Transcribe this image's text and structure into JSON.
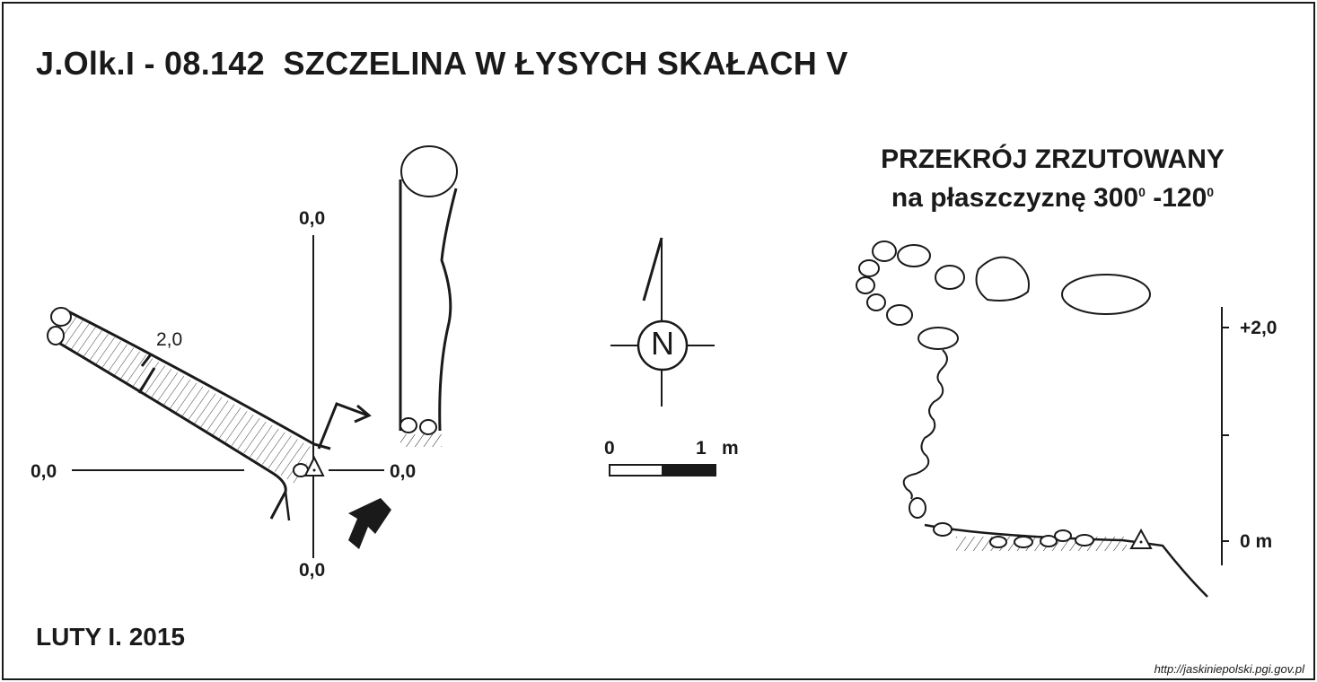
{
  "header": {
    "title": "J.Olk.I - 08.142  SZCZELINA W ŁYSYCH SKAŁACH V"
  },
  "plan_view": {
    "axis_labels": {
      "top": "0,0",
      "left": "0,0",
      "right": "0,0",
      "bottom": "0,0"
    },
    "depth_label": "2,0"
  },
  "north_arrow": {
    "letter": "N"
  },
  "scale_bar": {
    "start_label": "0",
    "end_label": "1",
    "unit": "m"
  },
  "section": {
    "title_line1": "PRZEKRÓJ ZRZUTOWANY",
    "title_line2_prefix": "na płaszczyznę 300",
    "degree1": "0",
    "title_line2_mid": " -120",
    "degree2": "0",
    "elevation_top": "+2,0",
    "elevation_bottom": "0 m"
  },
  "footer": {
    "author_date": "LUTY I. 2015",
    "source_url": "http://jaskiniepolski.pgi.gov.pl"
  },
  "colors": {
    "ink": "#1a1a1a",
    "paper": "#ffffff"
  }
}
